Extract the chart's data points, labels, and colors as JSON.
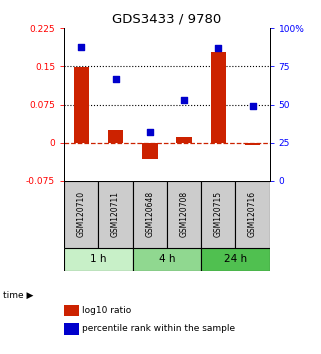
{
  "title": "GDS3433 / 9780",
  "samples": [
    "GSM120710",
    "GSM120711",
    "GSM120648",
    "GSM120708",
    "GSM120715",
    "GSM120716"
  ],
  "time_groups": [
    {
      "label": "1 h",
      "color": "#c8f0c8",
      "cols": [
        0,
        1
      ]
    },
    {
      "label": "4 h",
      "color": "#90d890",
      "cols": [
        2,
        3
      ]
    },
    {
      "label": "24 h",
      "color": "#50c050",
      "cols": [
        4,
        5
      ]
    }
  ],
  "log10_ratio": [
    0.148,
    0.025,
    -0.032,
    0.012,
    0.178,
    -0.004
  ],
  "percentile_rank": [
    88,
    67,
    32,
    53,
    87,
    49
  ],
  "ylim_left": [
    -0.075,
    0.225
  ],
  "ylim_right": [
    0,
    100
  ],
  "yticks_left": [
    -0.075,
    0,
    0.075,
    0.15,
    0.225
  ],
  "ytick_labels_left": [
    "-0.075",
    "0",
    "0.075",
    "0.15",
    "0.225"
  ],
  "yticks_right": [
    0,
    25,
    50,
    75,
    100
  ],
  "ytick_labels_right": [
    "0",
    "25",
    "50",
    "75",
    "100%"
  ],
  "hlines": [
    0.075,
    0.15
  ],
  "bar_color": "#cc2200",
  "dot_color": "#0000cc",
  "zero_line_color": "#cc2200",
  "hline_color": "#000000",
  "bg_color": "#ffffff",
  "sample_box_color": "#cccccc",
  "legend_items": [
    {
      "label": "log10 ratio",
      "color": "#cc2200"
    },
    {
      "label": "percentile rank within the sample",
      "color": "#0000cc"
    }
  ],
  "figsize": [
    3.21,
    3.54
  ],
  "dpi": 100
}
